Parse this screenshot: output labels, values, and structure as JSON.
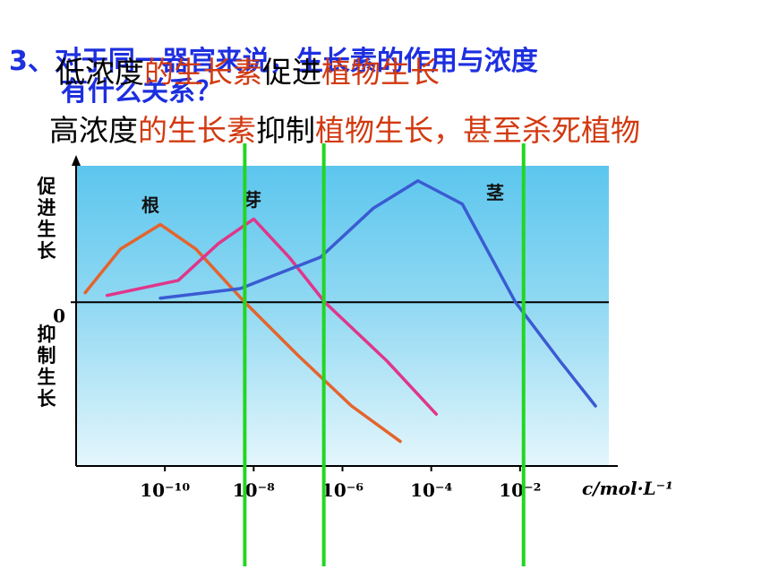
{
  "slide": {
    "title": [
      "3、对于同一器官来说，生长素的作用与浓度",
      "有什么关系？"
    ],
    "line1": [
      "低浓度",
      "的生长素",
      "促进",
      "植物生长"
    ],
    "line2": [
      "高浓度",
      "的生长素",
      "抑制",
      "植物生长，甚至杀死植物"
    ]
  },
  "chart_data": {
    "type": "line",
    "x_log_scale": true,
    "xlim": [
      1e-12,
      1
    ],
    "xticks": [
      {
        "value": 1e-10,
        "label": "10⁻¹⁰"
      },
      {
        "value": 1e-08,
        "label": "10⁻⁸"
      },
      {
        "value": 1e-06,
        "label": "10⁻⁶"
      },
      {
        "value": 0.0001,
        "label": "10⁻⁴"
      },
      {
        "value": 0.01,
        "label": "10⁻²"
      }
    ],
    "x_label": "c/mol·L⁻¹",
    "ylim": [
      -1.2,
      1
    ],
    "yticks": [
      0
    ],
    "y_label_top": "促进生长",
    "y_label_bottom": "抑制生长",
    "series": [
      {
        "name": "根",
        "color": "#e4642c",
        "x": [
          1.6e-12,
          1e-11,
          7.9e-11,
          5e-10,
          6.3e-09,
          1e-07,
          1.6e-06,
          2e-05
        ],
        "values": [
          0.07,
          0.39,
          0.57,
          0.39,
          0,
          -0.39,
          -0.76,
          -1.02
        ]
      },
      {
        "name": "芽",
        "color": "#e0368a",
        "x": [
          5e-12,
          2e-10,
          1.6e-09,
          1e-08,
          6.3e-08,
          4e-07,
          1e-05,
          0.00013
        ],
        "values": [
          0.05,
          0.16,
          0.43,
          0.61,
          0.33,
          0,
          -0.43,
          -0.82
        ]
      },
      {
        "name": "茎",
        "color": "#3a5bd2",
        "x": [
          7.9e-11,
          5e-09,
          3.2e-07,
          5e-06,
          5e-05,
          0.0005,
          0.0079,
          0.079,
          0.5
        ],
        "values": [
          0.03,
          0.1,
          0.33,
          0.69,
          0.89,
          0.72,
          0,
          -0.43,
          -0.76
        ]
      }
    ],
    "vlines": [
      6.3e-09,
      3.8e-07,
      0.012
    ],
    "vline_color": "#22d622"
  }
}
